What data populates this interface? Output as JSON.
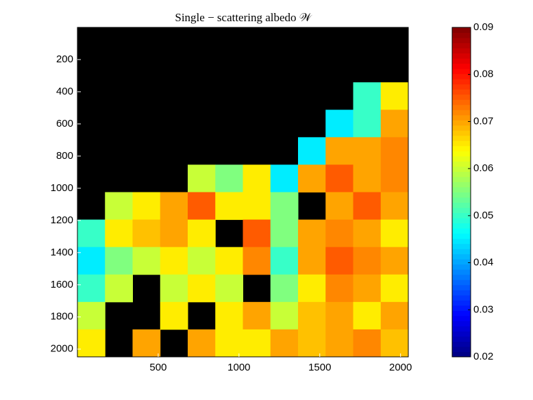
{
  "chart_data": {
    "type": "heatmap",
    "title": "Single − scattering albedo 𝒲",
    "colormap": "jet",
    "nan_color": "#000000",
    "xlim": [
      0,
      2048
    ],
    "ylim": [
      0,
      2048
    ],
    "y_reversed": true,
    "xticks": [
      500,
      1000,
      1500,
      2000
    ],
    "yticks": [
      200,
      400,
      600,
      800,
      1000,
      1200,
      1400,
      1600,
      1800,
      2000
    ],
    "clim": [
      0.02,
      0.09
    ],
    "cticks": [
      0.02,
      0.03,
      0.04,
      0.05,
      0.06,
      0.07,
      0.08,
      0.09
    ],
    "z": [
      [
        null,
        null,
        null,
        null,
        null,
        null,
        null,
        null,
        null,
        null,
        null,
        null
      ],
      [
        null,
        null,
        null,
        null,
        null,
        null,
        null,
        null,
        null,
        null,
        null,
        null
      ],
      [
        null,
        null,
        null,
        null,
        null,
        null,
        null,
        null,
        null,
        null,
        0.05,
        0.065
      ],
      [
        null,
        null,
        null,
        null,
        null,
        null,
        null,
        null,
        null,
        0.045,
        0.05,
        0.07
      ],
      [
        null,
        null,
        null,
        null,
        null,
        null,
        null,
        null,
        0.045,
        0.07,
        0.07,
        0.072
      ],
      [
        null,
        null,
        null,
        null,
        0.06,
        0.055,
        0.065,
        0.045,
        0.07,
        0.075,
        0.07,
        0.072
      ],
      [
        null,
        0.06,
        0.065,
        0.07,
        0.075,
        0.065,
        0.065,
        0.055,
        null,
        0.07,
        0.075,
        0.07
      ],
      [
        0.05,
        0.065,
        0.068,
        0.07,
        0.065,
        null,
        0.075,
        0.055,
        0.07,
        0.072,
        0.07,
        0.065
      ],
      [
        0.045,
        0.055,
        0.06,
        0.065,
        0.06,
        0.065,
        0.072,
        0.05,
        0.07,
        0.075,
        0.072,
        0.07
      ],
      [
        0.05,
        0.06,
        null,
        0.06,
        0.065,
        0.06,
        null,
        0.055,
        0.065,
        0.072,
        0.07,
        0.065
      ],
      [
        0.06,
        null,
        null,
        0.065,
        null,
        0.065,
        0.07,
        0.06,
        0.068,
        0.07,
        0.065,
        0.07
      ],
      [
        0.065,
        null,
        0.07,
        null,
        0.07,
        0.065,
        0.065,
        0.07,
        0.068,
        0.07,
        0.072,
        0.068
      ]
    ]
  }
}
